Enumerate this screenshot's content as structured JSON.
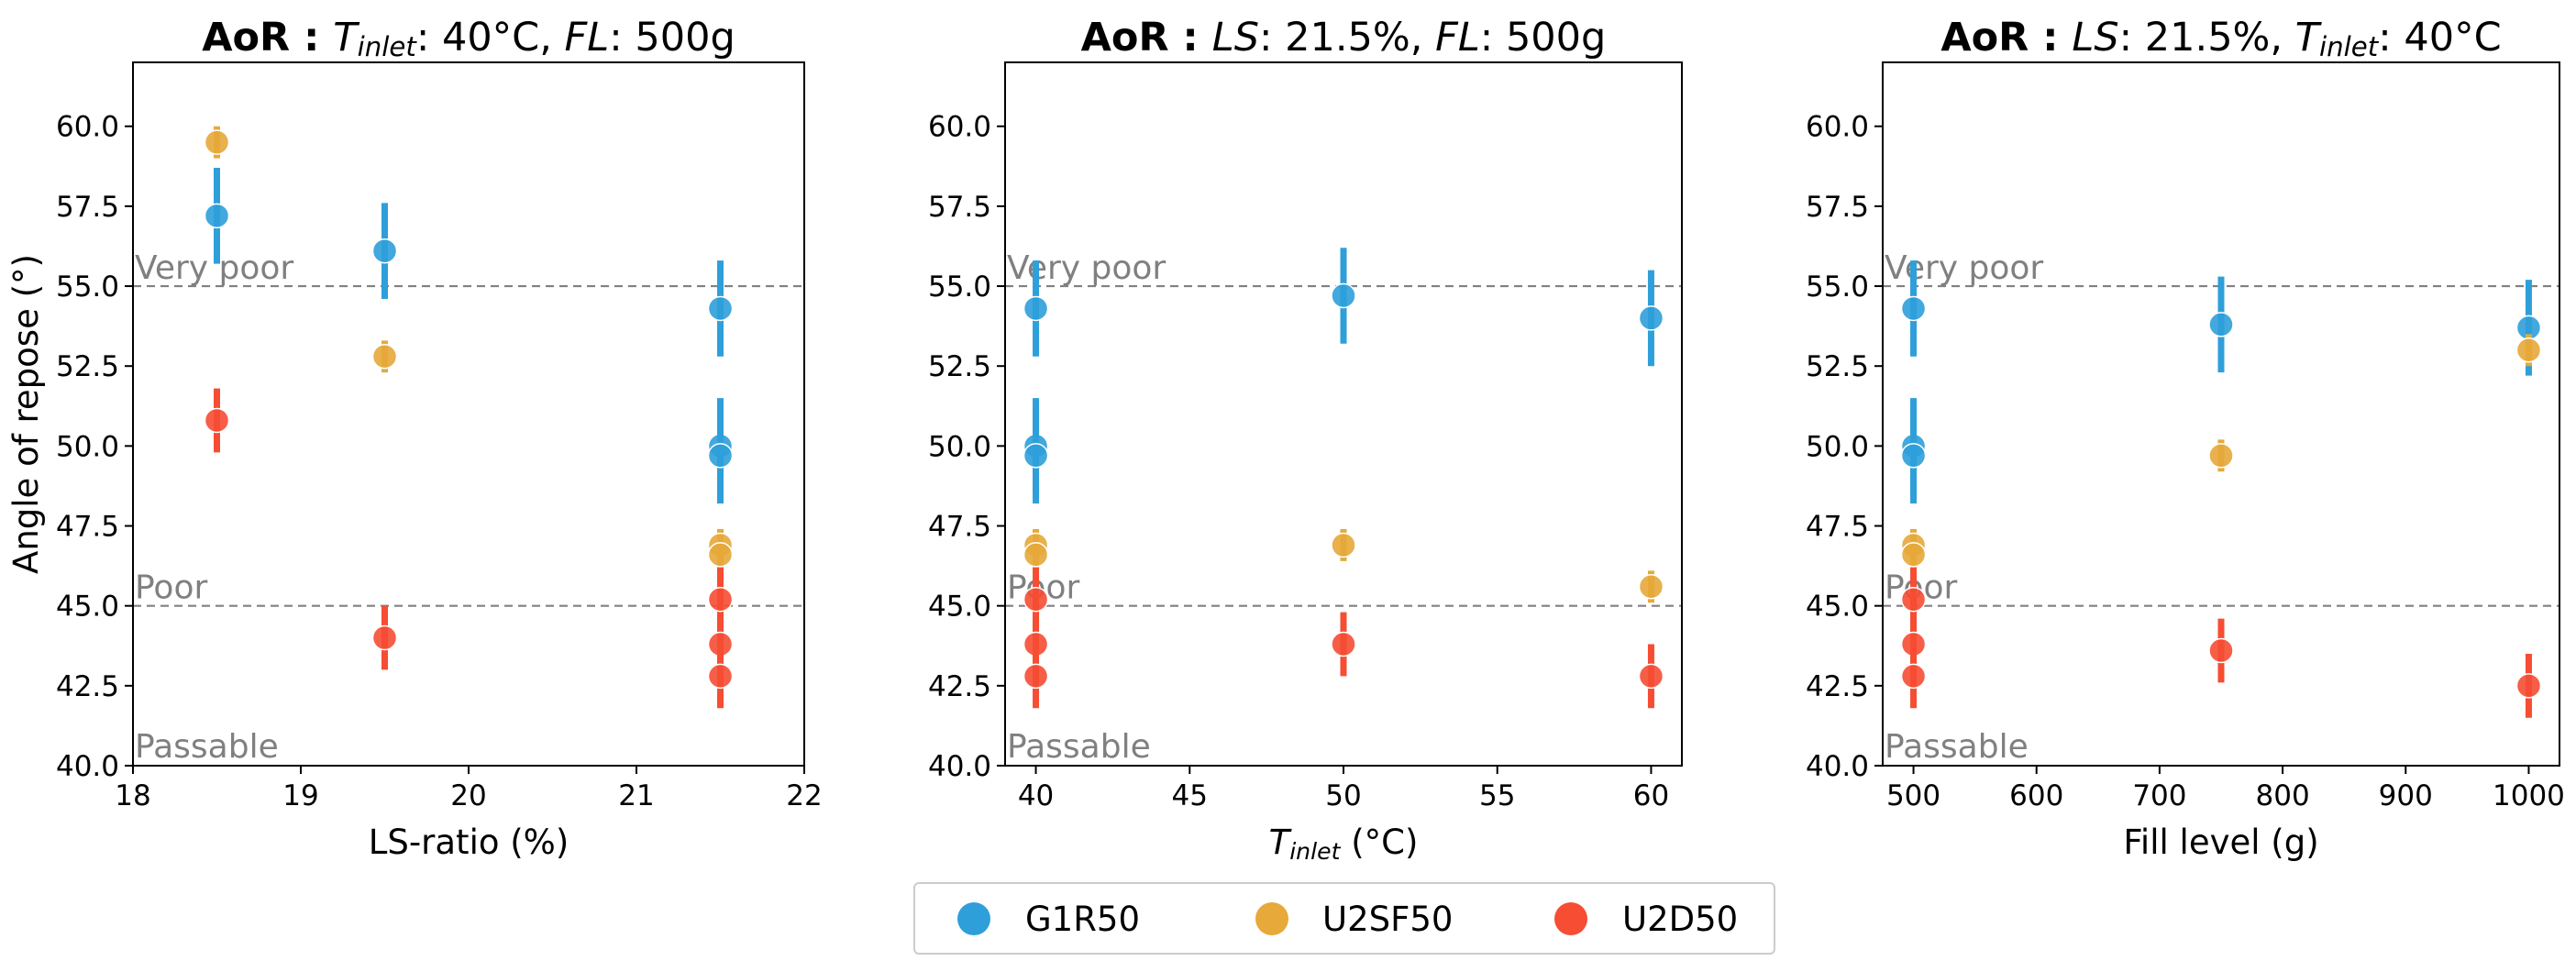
{
  "colors": {
    "G1R50": "#2e9fd9",
    "U2SF50": "#e6a93a",
    "U2D50": "#f64d33"
  },
  "legend": [
    "G1R50",
    "U2SF50",
    "U2D50"
  ],
  "chart_data": [
    {
      "type": "scatter",
      "title_bold": "AoR :",
      "title_rest": [
        {
          "text": "T",
          "italic": true
        },
        {
          "text": "inlet",
          "italic": true,
          "sub": true
        },
        {
          "text": ": 40°C, "
        },
        {
          "text": "FL",
          "italic": true
        },
        {
          "text": ": 500g"
        }
      ],
      "xlabel_parts": [
        {
          "text": "LS-ratio (%)"
        }
      ],
      "ylabel": "Angle of repose (°)",
      "xlim": [
        18,
        22
      ],
      "ylim": [
        40,
        62
      ],
      "xticks": [
        18,
        19,
        20,
        21,
        22
      ],
      "xtick_labels": [
        "18",
        "19",
        "20",
        "21",
        "22"
      ],
      "yticks": [
        40,
        42.5,
        45,
        47.5,
        50,
        52.5,
        55,
        57.5,
        60
      ],
      "ytick_labels": [
        "40.0",
        "42.5",
        "45.0",
        "47.5",
        "50.0",
        "52.5",
        "55.0",
        "57.5",
        "60.0"
      ],
      "series": [
        {
          "name": "G1R50",
          "points": [
            [
              18.5,
              57.2,
              1.5
            ],
            [
              19.5,
              56.1,
              1.5
            ],
            [
              21.5,
              54.3,
              1.5
            ],
            [
              21.5,
              50.0,
              1.5
            ],
            [
              21.5,
              49.7,
              1.5
            ]
          ]
        },
        {
          "name": "U2SF50",
          "points": [
            [
              18.5,
              59.5,
              0.5
            ],
            [
              19.5,
              52.8,
              0.5
            ],
            [
              21.5,
              46.9,
              0.5
            ],
            [
              21.5,
              46.6,
              0.5
            ]
          ]
        },
        {
          "name": "U2D50",
          "points": [
            [
              18.5,
              50.8,
              1.0
            ],
            [
              19.5,
              44.0,
              1.0
            ],
            [
              21.5,
              45.2,
              1.0
            ],
            [
              21.5,
              43.8,
              1.0
            ],
            [
              21.5,
              42.8,
              1.0
            ]
          ]
        }
      ]
    },
    {
      "type": "scatter",
      "title_bold": "AoR :",
      "title_rest": [
        {
          "text": "LS",
          "italic": true
        },
        {
          "text": ": 21.5%, "
        },
        {
          "text": "FL",
          "italic": true
        },
        {
          "text": ": 500g"
        }
      ],
      "xlabel_parts": [
        {
          "text": "T",
          "italic": true
        },
        {
          "text": "inlet",
          "italic": true,
          "sub": true
        },
        {
          "text": " (°C)"
        }
      ],
      "ylabel": "",
      "xlim": [
        39,
        61
      ],
      "ylim": [
        40,
        62
      ],
      "xticks": [
        40,
        45,
        50,
        55,
        60
      ],
      "xtick_labels": [
        "40",
        "45",
        "50",
        "55",
        "60"
      ],
      "yticks": [
        40,
        42.5,
        45,
        47.5,
        50,
        52.5,
        55,
        57.5,
        60
      ],
      "ytick_labels": [
        "40.0",
        "42.5",
        "45.0",
        "47.5",
        "50.0",
        "52.5",
        "55.0",
        "57.5",
        "60.0"
      ],
      "series": [
        {
          "name": "G1R50",
          "points": [
            [
              40,
              54.3,
              1.5
            ],
            [
              40,
              50.0,
              1.5
            ],
            [
              40,
              49.7,
              1.5
            ],
            [
              50,
              54.7,
              1.5
            ],
            [
              60,
              54.0,
              1.5
            ]
          ]
        },
        {
          "name": "U2SF50",
          "points": [
            [
              40,
              46.9,
              0.5
            ],
            [
              40,
              46.6,
              0.5
            ],
            [
              50,
              46.9,
              0.5
            ],
            [
              60,
              45.6,
              0.5
            ]
          ]
        },
        {
          "name": "U2D50",
          "points": [
            [
              40,
              45.2,
              1.0
            ],
            [
              40,
              43.8,
              1.0
            ],
            [
              40,
              42.8,
              1.0
            ],
            [
              50,
              43.8,
              1.0
            ],
            [
              60,
              42.8,
              1.0
            ]
          ]
        }
      ]
    },
    {
      "type": "scatter",
      "title_bold": "AoR :",
      "title_rest": [
        {
          "text": "LS",
          "italic": true
        },
        {
          "text": ": 21.5%, "
        },
        {
          "text": "T",
          "italic": true
        },
        {
          "text": "inlet",
          "italic": true,
          "sub": true
        },
        {
          "text": ": 40°C"
        }
      ],
      "xlabel_parts": [
        {
          "text": "Fill level (g)"
        }
      ],
      "ylabel": "",
      "xlim": [
        475,
        1025
      ],
      "ylim": [
        40,
        62
      ],
      "xticks": [
        500,
        600,
        700,
        800,
        900,
        1000
      ],
      "xtick_labels": [
        "500",
        "600",
        "700",
        "800",
        "900",
        "1000"
      ],
      "yticks": [
        40,
        42.5,
        45,
        47.5,
        50,
        52.5,
        55,
        57.5,
        60
      ],
      "ytick_labels": [
        "40.0",
        "42.5",
        "45.0",
        "47.5",
        "50.0",
        "52.5",
        "55.0",
        "57.5",
        "60.0"
      ],
      "series": [
        {
          "name": "G1R50",
          "points": [
            [
              500,
              54.3,
              1.5
            ],
            [
              500,
              50.0,
              1.5
            ],
            [
              500,
              49.7,
              1.5
            ],
            [
              750,
              53.8,
              1.5
            ],
            [
              1000,
              53.7,
              1.5
            ]
          ]
        },
        {
          "name": "U2SF50",
          "points": [
            [
              500,
              46.9,
              0.5
            ],
            [
              500,
              46.6,
              0.5
            ],
            [
              750,
              49.7,
              0.5
            ],
            [
              1000,
              53.0,
              0.5
            ]
          ]
        },
        {
          "name": "U2D50",
          "points": [
            [
              500,
              45.2,
              1.0
            ],
            [
              500,
              43.8,
              1.0
            ],
            [
              500,
              42.8,
              1.0
            ],
            [
              750,
              43.6,
              1.0
            ],
            [
              1000,
              42.5,
              1.0
            ]
          ]
        }
      ]
    }
  ],
  "thresholds": [
    {
      "y": 55,
      "label": "Very poor"
    },
    {
      "y": 45,
      "label": "Poor"
    }
  ],
  "zone_bottom_label": "Passable"
}
